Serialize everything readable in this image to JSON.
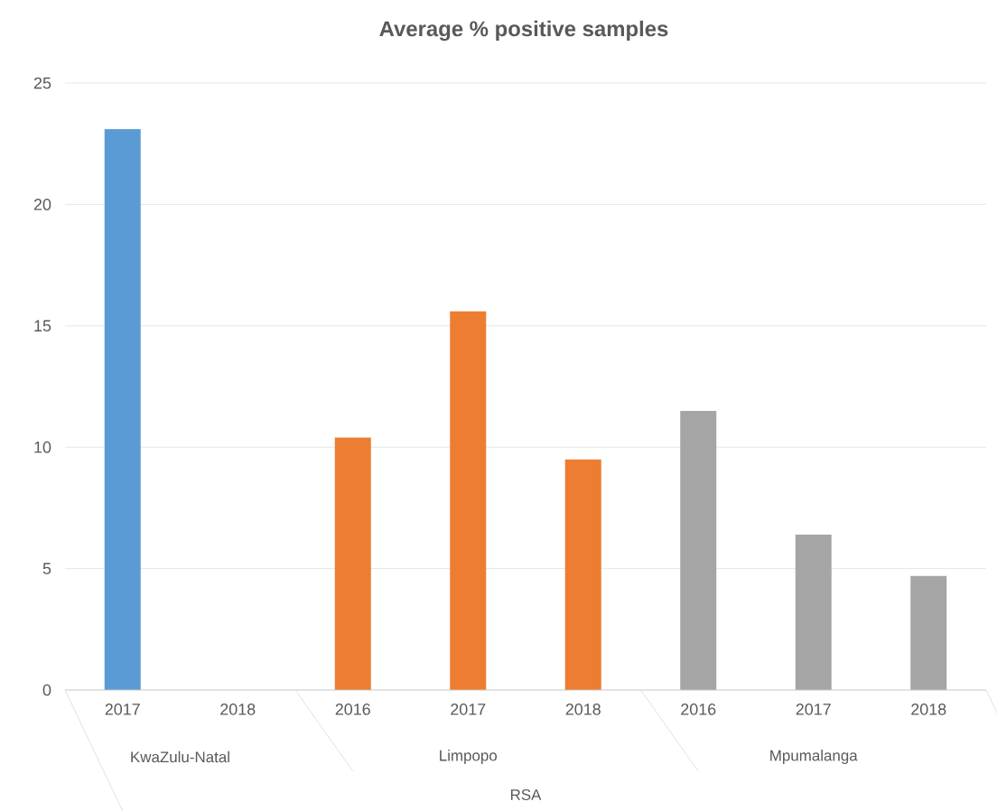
{
  "chart_data": {
    "type": "bar",
    "title": "Average % positive samples",
    "categories": [
      "2017",
      "2018",
      "2016",
      "2017",
      "2018",
      "2016",
      "2017",
      "2018"
    ],
    "values": [
      23.1,
      null,
      10.4,
      15.6,
      9.5,
      11.5,
      6.4,
      4.7
    ],
    "colors": [
      "#5b9bd5",
      "#5b9bd5",
      "#ed7d31",
      "#ed7d31",
      "#ed7d31",
      "#a5a5a5",
      "#a5a5a5",
      "#a5a5a5"
    ],
    "ylim": [
      0,
      25
    ],
    "yticks": [
      0,
      5,
      10,
      15,
      20,
      25
    ],
    "grid": "y",
    "annotations": [
      "KwaZulu-Natal",
      "Limpopo",
      "Mpumalanga",
      "RSA"
    ]
  }
}
